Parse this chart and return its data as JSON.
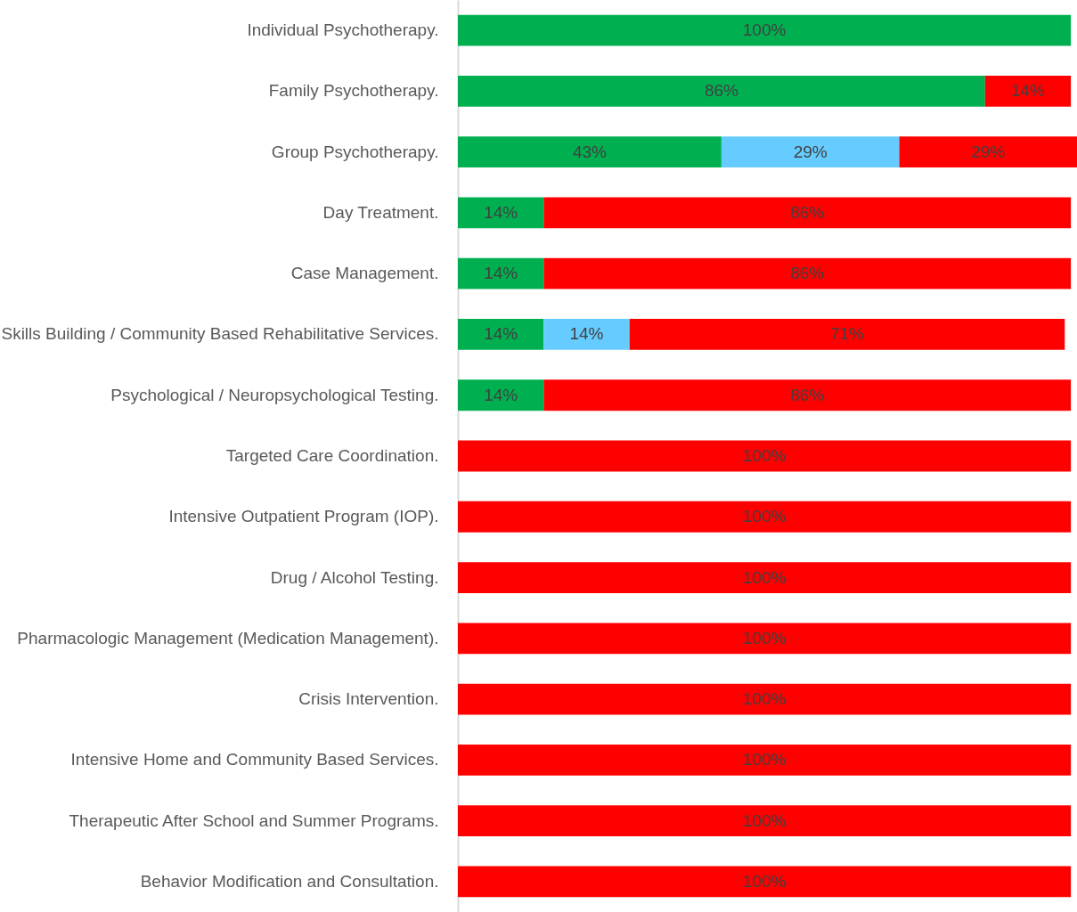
{
  "chart_data": {
    "type": "bar",
    "orientation": "horizontal",
    "stacked": true,
    "grid": false,
    "tick_labels": "y",
    "xlim": [
      0,
      101
    ],
    "categories": [
      "Individual Psychotherapy.",
      "Family Psychotherapy.",
      "Group Psychotherapy.",
      "Day Treatment.",
      "Case Management.",
      "Skills Building / Community Based Rehabilitative Services.",
      "Psychological / Neuropsychological Testing.",
      "Targeted Care Coordination.",
      "Intensive Outpatient Program (IOP).",
      "Drug / Alcohol Testing.",
      "Pharmacologic Management (Medication Management).",
      "Crisis Intervention.",
      "Intensive Home and Community Based Services.",
      "Therapeutic After School and Summer Programs.",
      "Behavior Modification and Consultation."
    ],
    "series": [
      {
        "color": "#00b050",
        "values": [
          100,
          86,
          43,
          14,
          14,
          14,
          14,
          null,
          null,
          null,
          null,
          null,
          null,
          null,
          null
        ],
        "value_labels": [
          "100%",
          "86%",
          "43%",
          "14%",
          "14%",
          "14%",
          "14%",
          null,
          null,
          null,
          null,
          null,
          null,
          null,
          null
        ]
      },
      {
        "color": "#66ccff",
        "values": [
          null,
          null,
          29,
          null,
          null,
          14,
          null,
          null,
          null,
          null,
          null,
          null,
          null,
          null,
          null
        ],
        "value_labels": [
          null,
          null,
          "29%",
          null,
          null,
          "14%",
          null,
          null,
          null,
          null,
          null,
          null,
          null,
          null,
          null
        ]
      },
      {
        "color": "#ff0000",
        "values": [
          null,
          14,
          29,
          86,
          86,
          71,
          86,
          100,
          100,
          100,
          100,
          100,
          100,
          100,
          100
        ],
        "value_labels": [
          null,
          "14%",
          "29%",
          "86%",
          "86%",
          "71%",
          "86%",
          "100%",
          "100%",
          "100%",
          "100%",
          "100%",
          "100%",
          "100%",
          "100%"
        ]
      }
    ]
  }
}
